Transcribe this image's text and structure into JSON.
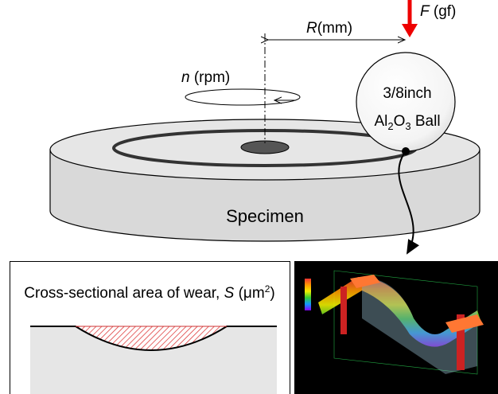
{
  "labels": {
    "radius": {
      "symbol": "R",
      "unit": "(mm)"
    },
    "force": {
      "symbol": "F",
      "unit": " (gf)"
    },
    "speed": {
      "symbol": "n",
      "unit": " (rpm)"
    },
    "ball_size": "3/8inch",
    "ball_material": {
      "a": "Al",
      "a_sub": "2",
      "b": "O",
      "b_sub": "3",
      "rest": " Ball"
    },
    "specimen": "Specimen",
    "wear_area": {
      "text": "Cross-sectional area of wear, ",
      "symbol": "S",
      "unit_open": " (μm",
      "unit_sup": "2",
      "unit_close": ")"
    }
  }
}
